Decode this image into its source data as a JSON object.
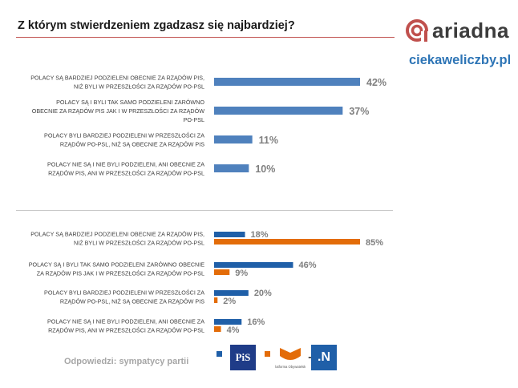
{
  "header": {
    "title": "Z którym stwierdzeniem zgadzasz się najbardziej?",
    "brand": "ariadna",
    "website": "ciekaweliczby.pl"
  },
  "footer": {
    "note": "Odpowiedzi: sympatycy partii"
  },
  "colors": {
    "all": "#4f81bd",
    "pis": "#1f5fa8",
    "opposition": "#e36c09",
    "value_text": "#7f7f7f",
    "accent": "#c0504d"
  },
  "chart_data": [
    {
      "type": "bar",
      "orientation": "horizontal",
      "categories": [
        [
          "POLACY SĄ BARDZIEJ PODZIELENI OBECNIE ZA RZĄDÓW PIS,",
          "NIŻ BYLI W PRZESZŁOŚCI ZA RZĄDÓW PO-PSL"
        ],
        [
          "POLACY SĄ I BYLI TAK SAMO PODZIELENI ZARÓWNO",
          "OBECNIE ZA RZĄDÓW PIS JAK I W PRZESZŁOŚCI ZA RZĄDÓW",
          "PO-PSL"
        ],
        [
          "POLACY BYLI BARDZIEJ PODZIELENI W PRZESZŁOŚCI ZA",
          "RZĄDÓW PO-PSL, NIŻ SĄ OBECNIE ZA RZĄDÓW PIS"
        ],
        [
          "POLACY NIE SĄ I NIE BYLI PODZIELENI, ANI OBECNIE ZA",
          "RZĄDÓW PIS, ANI W PRZESZŁOŚCI ZA RZĄDÓW PO-PSL"
        ]
      ],
      "values": [
        42,
        37,
        11,
        10
      ],
      "labels": [
        "42%",
        "37%",
        "11%",
        "10%"
      ]
    },
    {
      "type": "bar",
      "orientation": "horizontal",
      "categories": [
        [
          "POLACY SĄ BARDZIEJ PODZIELENI OBECNIE ZA RZĄDÓW PIS,",
          "NIŻ BYLI W PRZESZŁOŚCI ZA RZĄDÓW PO-PSL"
        ],
        [
          "POLACY SĄ I BYLI TAK SAMO PODZIELENI ZARÓWNO OBECNIE",
          "ZA RZĄDÓW PIS JAK I W PRZESZŁOŚCI ZA RZĄDÓW PO-PSL"
        ],
        [
          "POLACY BYLI BARDZIEJ PODZIELENI W PRZESZŁOŚCI ZA",
          "RZĄDÓW PO-PSL, NIŻ SĄ OBECNIE ZA RZĄDÓW PIS"
        ],
        [
          "POLACY NIE SĄ I NIE BYLI PODZIELENI, ANI OBECNIE ZA",
          "RZĄDÓW PIS, ANI W PRZESZŁOŚCI ZA RZĄDÓW PO-PSL"
        ]
      ],
      "series": [
        {
          "name": "PiS",
          "values": [
            18,
            46,
            20,
            16
          ],
          "labels": [
            "18%",
            "46%",
            "20%",
            "16%"
          ]
        },
        {
          "name": "Platforma Obywatelska + .N",
          "values": [
            85,
            9,
            2,
            4
          ],
          "labels": [
            "85%",
            "9%",
            "2%",
            "4%"
          ]
        }
      ],
      "legend": {
        "pis_logo_text": "PiS",
        "po_logo_text": "Platforma Obywatelska",
        "plus": "+",
        "n_logo_text": ".N"
      }
    }
  ]
}
